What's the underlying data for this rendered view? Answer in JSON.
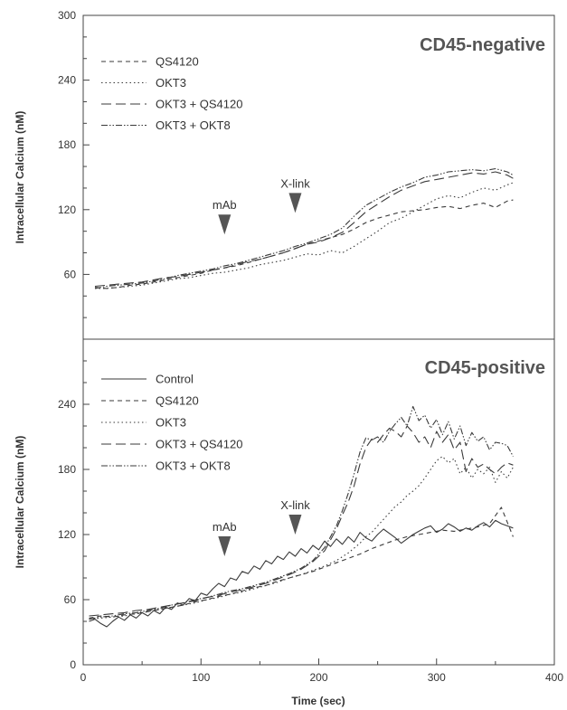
{
  "chart_data": [
    {
      "type": "line",
      "title": "CD45-negative",
      "xlabel": "Time (sec)",
      "ylabel": "Intracellular Calcium (nM)",
      "xlim": [
        0,
        400
      ],
      "ylim": [
        0,
        300
      ],
      "y_ticks": [
        60,
        120,
        180,
        240,
        300
      ],
      "legend_position": "top-left",
      "grid": false,
      "annotations": [
        {
          "label": "mAb",
          "x": 120,
          "y": 97
        },
        {
          "label": "X-link",
          "x": 180,
          "y": 117
        }
      ],
      "series": [
        {
          "name": "QS4120",
          "dash": "5 4",
          "x": [
            10,
            20,
            30,
            40,
            50,
            60,
            70,
            80,
            90,
            100,
            110,
            120,
            130,
            140,
            150,
            160,
            170,
            180,
            190,
            200,
            210,
            220,
            230,
            240,
            250,
            260,
            270,
            280,
            290,
            300,
            310,
            320,
            330,
            340,
            350,
            360,
            365
          ],
          "y": [
            48,
            47,
            48,
            50,
            51,
            53,
            55,
            57,
            59,
            61,
            64,
            66,
            68,
            71,
            74,
            77,
            80,
            84,
            88,
            91,
            94,
            97,
            102,
            108,
            112,
            115,
            118,
            119,
            120,
            122,
            123,
            121,
            124,
            126,
            122,
            128,
            129
          ]
        },
        {
          "name": "OKT3",
          "dash": "1.5 3",
          "x": [
            10,
            20,
            30,
            40,
            50,
            60,
            70,
            80,
            90,
            100,
            110,
            120,
            130,
            140,
            150,
            160,
            170,
            180,
            190,
            200,
            210,
            220,
            230,
            240,
            250,
            260,
            270,
            280,
            290,
            300,
            310,
            320,
            330,
            340,
            350,
            360,
            365
          ],
          "y": [
            47,
            47,
            48,
            49,
            50,
            52,
            54,
            56,
            57,
            59,
            61,
            62,
            64,
            66,
            69,
            71,
            73,
            76,
            79,
            78,
            82,
            80,
            86,
            93,
            100,
            108,
            112,
            118,
            124,
            130,
            133,
            131,
            136,
            140,
            138,
            143,
            145
          ]
        },
        {
          "name": "OKT3 + QS4120",
          "dash": "11 5",
          "x": [
            10,
            20,
            30,
            40,
            50,
            60,
            70,
            80,
            90,
            100,
            110,
            120,
            130,
            140,
            150,
            160,
            170,
            180,
            190,
            200,
            210,
            220,
            230,
            240,
            250,
            260,
            270,
            280,
            290,
            300,
            310,
            320,
            330,
            340,
            350,
            360,
            365
          ],
          "y": [
            49,
            50,
            51,
            52,
            53,
            55,
            57,
            58,
            60,
            62,
            64,
            66,
            69,
            72,
            74,
            77,
            80,
            84,
            88,
            90,
            94,
            99,
            108,
            118,
            125,
            132,
            138,
            142,
            146,
            148,
            150,
            152,
            154,
            153,
            155,
            152,
            149
          ]
        },
        {
          "name": "OKT3 + OKT8",
          "dash": "7 2 1.5 2 1.5 2",
          "x": [
            10,
            20,
            30,
            40,
            50,
            60,
            70,
            80,
            90,
            100,
            110,
            120,
            130,
            140,
            150,
            160,
            170,
            180,
            190,
            200,
            210,
            220,
            230,
            240,
            250,
            260,
            270,
            280,
            290,
            300,
            310,
            320,
            330,
            340,
            350,
            360,
            365
          ],
          "y": [
            47,
            49,
            50,
            51,
            52,
            54,
            56,
            59,
            61,
            63,
            65,
            68,
            70,
            73,
            76,
            79,
            82,
            86,
            89,
            93,
            97,
            103,
            114,
            124,
            130,
            136,
            141,
            145,
            150,
            152,
            155,
            156,
            157,
            156,
            158,
            155,
            152
          ]
        }
      ]
    },
    {
      "type": "line",
      "title": "CD45-positive",
      "xlabel": "Time (sec)",
      "ylabel": "Intracellular Calcium (nM)",
      "xlim": [
        0,
        400
      ],
      "ylim": [
        0,
        300
      ],
      "x_ticks": [
        0,
        100,
        200,
        300,
        400
      ],
      "y_ticks": [
        0,
        60,
        120,
        180,
        240
      ],
      "legend_position": "top-left",
      "grid": false,
      "annotations": [
        {
          "label": "mAb",
          "x": 120,
          "y": 100
        },
        {
          "label": "X-link",
          "x": 180,
          "y": 120
        }
      ],
      "series": [
        {
          "name": "Control",
          "dash": "",
          "x": [
            5,
            10,
            15,
            20,
            25,
            30,
            35,
            40,
            45,
            50,
            55,
            60,
            65,
            70,
            75,
            80,
            85,
            90,
            95,
            100,
            105,
            110,
            115,
            120,
            125,
            130,
            135,
            140,
            145,
            150,
            155,
            160,
            165,
            170,
            175,
            180,
            185,
            190,
            195,
            200,
            205,
            210,
            215,
            220,
            225,
            230,
            235,
            240,
            245,
            250,
            255,
            260,
            265,
            270,
            275,
            280,
            285,
            290,
            295,
            300,
            305,
            310,
            315,
            320,
            325,
            330,
            335,
            340,
            345,
            350,
            355,
            360,
            365
          ],
          "y": [
            40,
            42,
            38,
            35,
            40,
            44,
            41,
            46,
            43,
            48,
            45,
            50,
            47,
            53,
            51,
            57,
            55,
            61,
            59,
            66,
            64,
            70,
            75,
            72,
            80,
            78,
            86,
            84,
            91,
            88,
            96,
            93,
            100,
            97,
            104,
            100,
            107,
            103,
            110,
            106,
            114,
            109,
            116,
            111,
            118,
            113,
            122,
            117,
            114,
            120,
            125,
            121,
            117,
            112,
            116,
            120,
            123,
            126,
            128,
            122,
            125,
            130,
            127,
            123,
            126,
            124,
            128,
            131,
            127,
            133,
            130,
            128,
            126
          ]
        },
        {
          "name": "QS4120",
          "dash": "5 4",
          "x": [
            5,
            15,
            25,
            35,
            45,
            55,
            65,
            75,
            85,
            95,
            105,
            115,
            125,
            135,
            145,
            155,
            165,
            175,
            185,
            195,
            205,
            215,
            225,
            235,
            245,
            255,
            265,
            275,
            285,
            295,
            305,
            315,
            325,
            335,
            345,
            355,
            365
          ],
          "y": [
            43,
            45,
            44,
            46,
            47,
            49,
            51,
            53,
            55,
            58,
            60,
            63,
            65,
            68,
            71,
            73,
            77,
            80,
            83,
            86,
            90,
            94,
            98,
            102,
            107,
            111,
            115,
            118,
            120,
            122,
            124,
            123,
            125,
            127,
            130,
            145,
            118
          ]
        },
        {
          "name": "OKT3",
          "dash": "1.5 3",
          "x": [
            5,
            15,
            25,
            35,
            45,
            55,
            65,
            75,
            85,
            95,
            105,
            115,
            125,
            135,
            145,
            155,
            165,
            175,
            185,
            195,
            205,
            215,
            225,
            235,
            240,
            245,
            250,
            255,
            260,
            265,
            270,
            275,
            280,
            285,
            290,
            295,
            300,
            305,
            310,
            315,
            320,
            325,
            330,
            335,
            340,
            345,
            350,
            355,
            360,
            365
          ],
          "y": [
            42,
            43,
            44,
            45,
            47,
            49,
            51,
            53,
            55,
            57,
            60,
            62,
            65,
            67,
            70,
            73,
            76,
            80,
            83,
            87,
            91,
            96,
            103,
            112,
            118,
            122,
            128,
            134,
            140,
            146,
            150,
            156,
            160,
            165,
            172,
            180,
            188,
            192,
            186,
            190,
            176,
            182,
            172,
            180,
            176,
            182,
            168,
            178,
            172,
            182
          ]
        },
        {
          "name": "OKT3 + QS4120",
          "dash": "11 5",
          "x": [
            5,
            15,
            25,
            35,
            45,
            55,
            65,
            75,
            85,
            95,
            105,
            115,
            125,
            135,
            145,
            155,
            165,
            175,
            185,
            195,
            205,
            215,
            220,
            225,
            230,
            235,
            240,
            245,
            250,
            255,
            260,
            265,
            270,
            275,
            280,
            285,
            290,
            295,
            300,
            305,
            310,
            315,
            320,
            325,
            330,
            335,
            340,
            345,
            350,
            355,
            360,
            365
          ],
          "y": [
            45,
            46,
            47,
            48,
            50,
            51,
            53,
            55,
            57,
            59,
            62,
            64,
            67,
            69,
            72,
            75,
            79,
            83,
            88,
            95,
            105,
            125,
            138,
            150,
            165,
            185,
            200,
            208,
            205,
            212,
            218,
            215,
            210,
            220,
            214,
            205,
            210,
            200,
            215,
            205,
            212,
            198,
            205,
            178,
            190,
            182,
            185,
            180,
            176,
            182,
            186,
            184
          ]
        },
        {
          "name": "OKT3 + OKT8",
          "dash": "7 2 1.5 2 1.5 2",
          "x": [
            5,
            15,
            25,
            35,
            45,
            55,
            65,
            75,
            85,
            95,
            105,
            115,
            125,
            135,
            145,
            155,
            165,
            175,
            185,
            195,
            205,
            215,
            220,
            225,
            230,
            235,
            240,
            245,
            250,
            255,
            260,
            265,
            270,
            275,
            280,
            285,
            290,
            295,
            300,
            305,
            310,
            315,
            320,
            325,
            330,
            335,
            340,
            345,
            350,
            355,
            360,
            365
          ],
          "y": [
            42,
            44,
            45,
            47,
            48,
            50,
            52,
            55,
            57,
            60,
            62,
            65,
            68,
            70,
            73,
            76,
            80,
            84,
            89,
            96,
            108,
            128,
            142,
            158,
            176,
            196,
            209,
            207,
            210,
            205,
            215,
            222,
            228,
            220,
            238,
            225,
            230,
            218,
            226,
            212,
            224,
            208,
            220,
            202,
            214,
            206,
            210,
            198,
            205,
            204,
            202,
            192
          ]
        }
      ]
    }
  ]
}
